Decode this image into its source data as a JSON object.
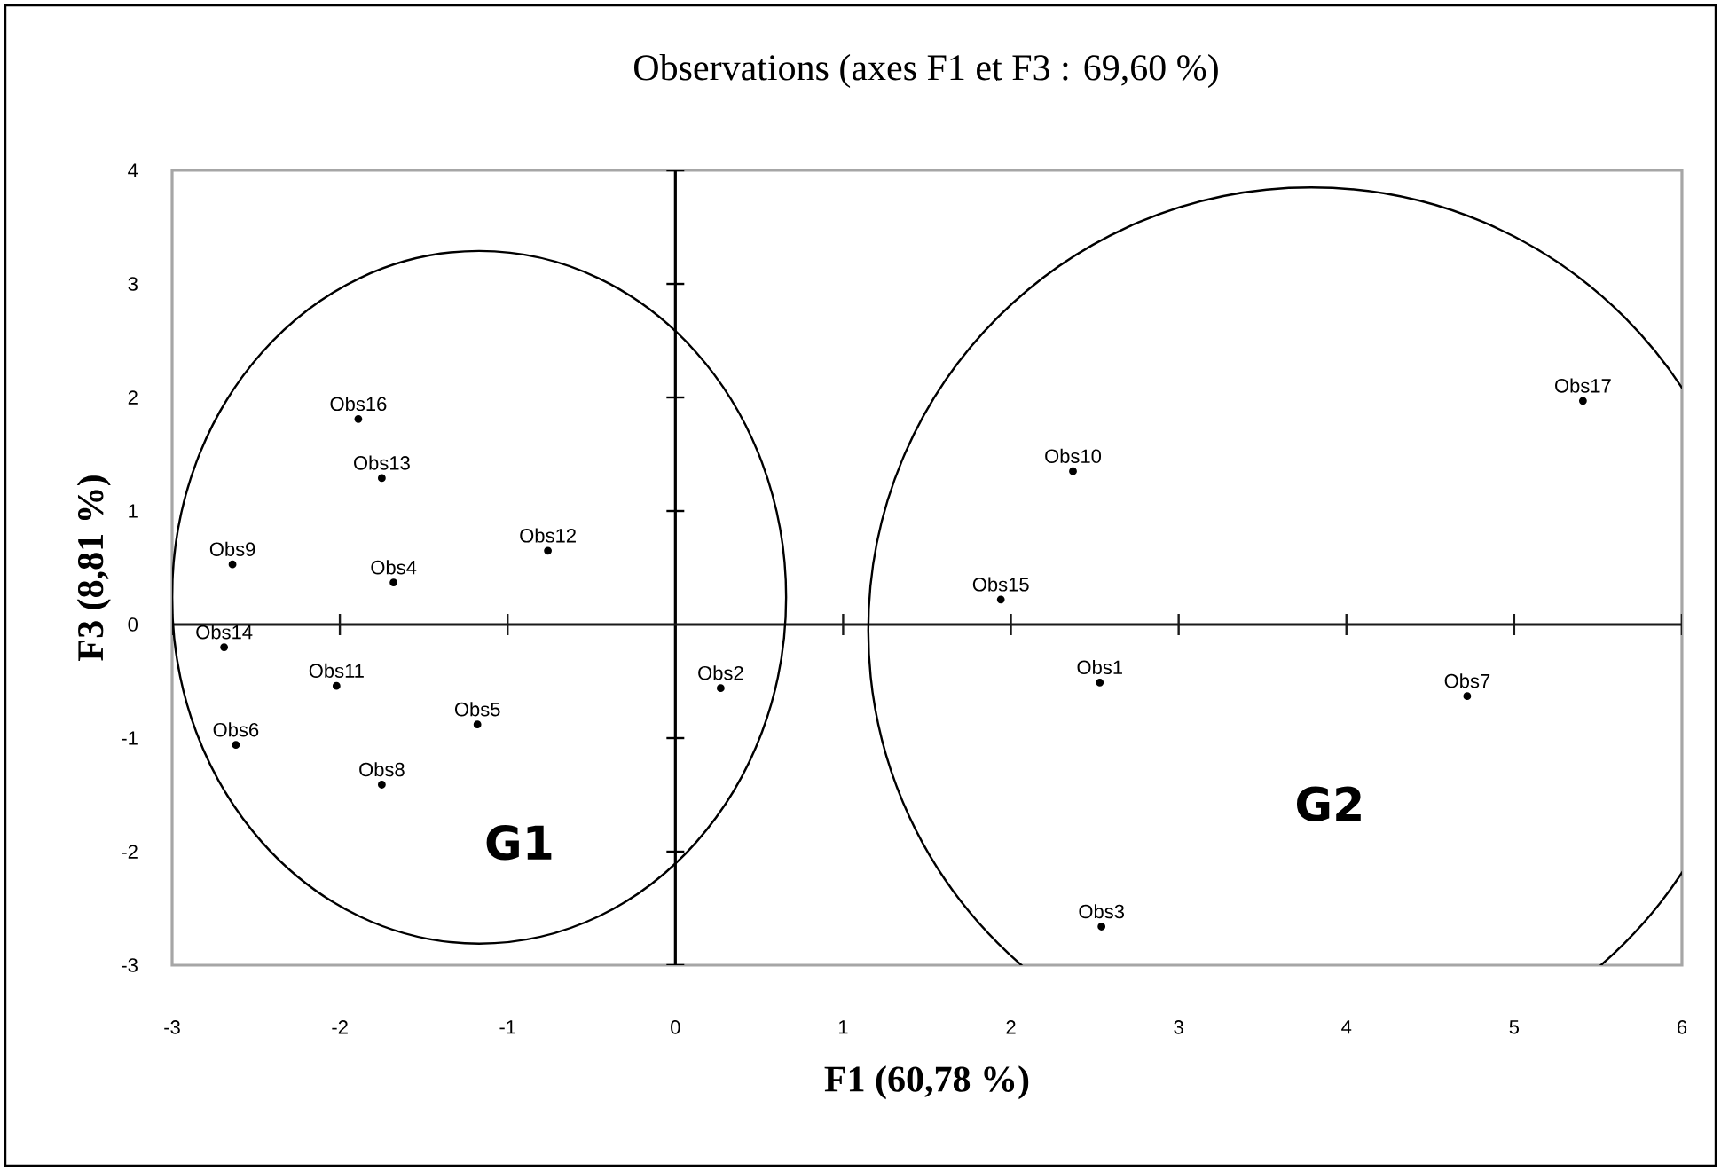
{
  "chart_data": {
    "type": "scatter",
    "title": "Observations (axes F1 et F3 : 69,60 %)",
    "xlabel": "F1 (60,78 %)",
    "ylabel": "F3 (8,81 %)",
    "xlim": [
      -3,
      6
    ],
    "ylim": [
      -3,
      4
    ],
    "xticks": [
      -3,
      -2,
      -1,
      0,
      1,
      2,
      3,
      4,
      5,
      6
    ],
    "yticks": [
      -3,
      -2,
      -1,
      0,
      1,
      2,
      3,
      4
    ],
    "marker": "circle",
    "grid": false,
    "series": [
      {
        "color": "#000000",
        "x": [
          2.53,
          0.27,
          2.54,
          -1.68,
          -1.18,
          -2.62,
          4.72,
          -1.75,
          -2.64,
          2.37,
          -2.02,
          -0.76,
          -1.75,
          -2.69,
          1.94,
          -1.89,
          5.41
        ],
        "values": [
          -0.51,
          -0.56,
          -2.66,
          0.37,
          -0.88,
          -1.06,
          -0.63,
          -1.41,
          0.53,
          1.35,
          -0.54,
          0.65,
          1.29,
          -0.2,
          0.22,
          1.81,
          1.97
        ],
        "value_labels": [
          "Obs1",
          "Obs2",
          "Obs3",
          "Obs4",
          "Obs5",
          "Obs6",
          "Obs7",
          "Obs8",
          "Obs9",
          "Obs10",
          "Obs11",
          "Obs12",
          "Obs13",
          "Obs14",
          "Obs15",
          "Obs16",
          "Obs17"
        ]
      }
    ],
    "ref_lines": [
      {
        "axis": "x",
        "value": 0,
        "color": "#000000"
      },
      {
        "axis": "y",
        "value": 0,
        "color": "#1a1a1a"
      }
    ],
    "annotations": [
      "G1",
      "G2"
    ]
  }
}
